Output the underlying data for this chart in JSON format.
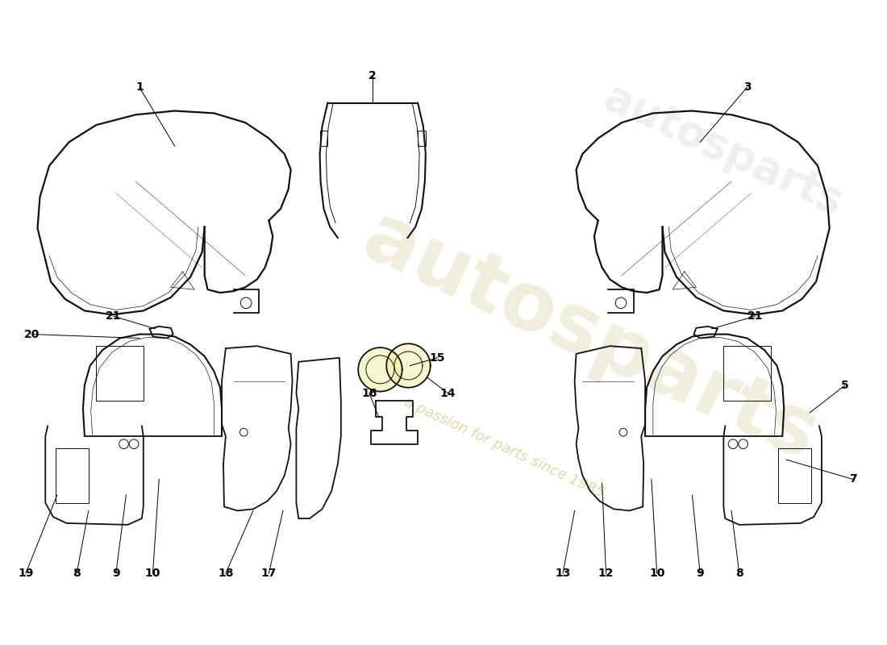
{
  "bg": "#ffffff",
  "lc": "#111111",
  "lw": 1.3,
  "lwt": 0.7,
  "label_fs": 10,
  "wm1": "autosparts",
  "wm2": "a passion for parts since 1985",
  "wm_col1": "#d4c890",
  "wm_col2": "#c8b860"
}
